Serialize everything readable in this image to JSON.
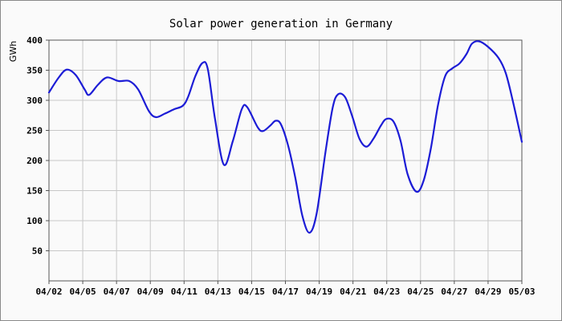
{
  "chart_data": {
    "type": "line",
    "title": "Solar power generation in Germany",
    "xlabel": "",
    "ylabel": "GWh",
    "x_tick_labels": [
      "04/02",
      "04/05",
      "04/07",
      "04/09",
      "04/11",
      "04/13",
      "04/15",
      "04/17",
      "04/19",
      "04/21",
      "04/23",
      "04/25",
      "04/27",
      "04/29",
      "05/03"
    ],
    "y_ticks": [
      50,
      100,
      150,
      200,
      250,
      300,
      350,
      400
    ],
    "ylim": [
      0,
      400
    ],
    "grid": true,
    "series": [
      {
        "name": "",
        "color": "#1c1cd6",
        "points": [
          [
            0,
            313
          ],
          [
            0.55,
            338
          ],
          [
            1.0,
            351
          ],
          [
            1.5,
            342
          ],
          [
            2.0,
            318
          ],
          [
            2.25,
            309
          ],
          [
            2.75,
            326
          ],
          [
            3.25,
            338
          ],
          [
            3.9,
            332
          ],
          [
            4.5,
            332
          ],
          [
            5.0,
            318
          ],
          [
            5.6,
            282
          ],
          [
            6.0,
            272
          ],
          [
            6.5,
            278
          ],
          [
            7.0,
            285
          ],
          [
            7.5,
            291
          ],
          [
            7.8,
            306
          ],
          [
            8.2,
            340
          ],
          [
            8.6,
            362
          ],
          [
            8.9,
            352
          ],
          [
            9.3,
            270
          ],
          [
            9.8,
            193
          ],
          [
            10.3,
            232
          ],
          [
            10.8,
            285
          ],
          [
            11.1,
            289
          ],
          [
            11.7,
            255
          ],
          [
            12.0,
            249
          ],
          [
            12.4,
            258
          ],
          [
            12.7,
            266
          ],
          [
            13.0,
            260
          ],
          [
            13.4,
            225
          ],
          [
            13.8,
            172
          ],
          [
            14.2,
            108
          ],
          [
            14.6,
            80
          ],
          [
            15.0,
            112
          ],
          [
            15.5,
            215
          ],
          [
            15.9,
            288
          ],
          [
            16.2,
            310
          ],
          [
            16.6,
            305
          ],
          [
            17.0,
            273
          ],
          [
            17.4,
            236
          ],
          [
            17.8,
            223
          ],
          [
            18.2,
            237
          ],
          [
            18.6,
            258
          ],
          [
            18.9,
            269
          ],
          [
            19.3,
            265
          ],
          [
            19.7,
            233
          ],
          [
            20.1,
            177
          ],
          [
            20.6,
            148
          ],
          [
            21.0,
            167
          ],
          [
            21.4,
            220
          ],
          [
            21.8,
            292
          ],
          [
            22.2,
            340
          ],
          [
            22.6,
            353
          ],
          [
            23.0,
            361
          ],
          [
            23.4,
            377
          ],
          [
            23.7,
            394
          ],
          [
            24.1,
            398
          ],
          [
            24.6,
            389
          ],
          [
            25.2,
            370
          ],
          [
            25.6,
            345
          ],
          [
            26.0,
            298
          ],
          [
            26.5,
            231
          ]
        ]
      }
    ]
  }
}
